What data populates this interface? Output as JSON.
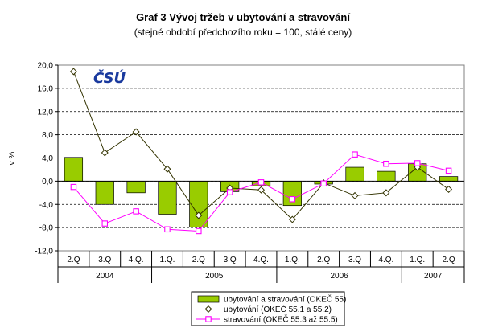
{
  "chart_data": {
    "type": "bar",
    "title": "Graf 3 Vývoj tržeb v ubytování a stravování",
    "subtitle": "(stejné období předchozího roku = 100, stálé ceny)",
    "ylabel": "v %",
    "ylim": [
      -12,
      20
    ],
    "yticks": [
      "20,0",
      "16,0",
      "12,0",
      "8,0",
      "4,0",
      "0,0",
      "-4,0",
      "-8,0",
      "-12,0"
    ],
    "ytick_values": [
      20,
      16,
      12,
      8,
      4,
      0,
      -4,
      -8,
      -12
    ],
    "categories": [
      "2.Q",
      "3.Q",
      "4.Q.",
      "1.Q.",
      "2.Q",
      "3.Q",
      "4.Q.",
      "1.Q.",
      "2.Q",
      "3.Q",
      "4.Q.",
      "1.Q.",
      "2.Q"
    ],
    "years": [
      {
        "label": "2004",
        "span": 3
      },
      {
        "label": "2005",
        "span": 4
      },
      {
        "label": "2006",
        "span": 4
      },
      {
        "label": "2007",
        "span": 2
      }
    ],
    "grid": true,
    "legend_position": "bottom",
    "series": [
      {
        "name": "ubytování a stravování (OKEČ 55)",
        "type": "bar",
        "color": "#99cc00",
        "values": [
          4.1,
          -4.0,
          -2.0,
          -5.7,
          -7.9,
          -1.8,
          -0.8,
          -4.2,
          -0.5,
          2.4,
          1.7,
          3.0,
          0.8
        ]
      },
      {
        "name": "ubytování (OKEČ 55.1 a 55.2)",
        "type": "line",
        "color": "#333300",
        "marker": "diamond",
        "values": [
          18.9,
          4.9,
          8.5,
          2.1,
          -5.9,
          -1.2,
          -1.5,
          -6.6,
          -0.3,
          -2.5,
          -2.0,
          2.4,
          -1.4
        ]
      },
      {
        "name": "stravování (OKEČ 55.3 až 55.5)",
        "type": "line",
        "color": "#ff00ff",
        "marker": "square",
        "values": [
          -1.0,
          -7.3,
          -5.2,
          -8.3,
          -8.6,
          -1.9,
          -0.2,
          -3.1,
          -0.4,
          4.6,
          3.0,
          3.1,
          1.8
        ]
      }
    ]
  },
  "logo": {
    "text": "ČSÚ",
    "color": "#1a3a9e"
  }
}
